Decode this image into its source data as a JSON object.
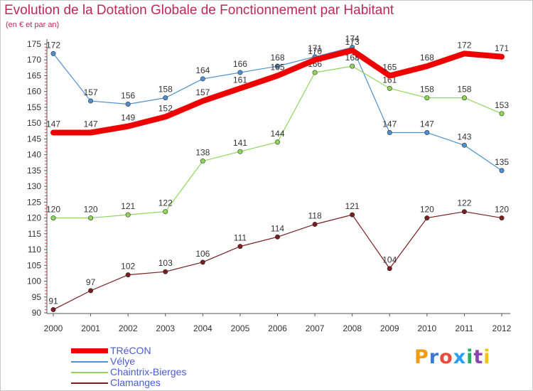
{
  "title": "Evolution de la Dotation Globale de Fonctionnement par Habitant",
  "subtitle": "(en € et par an)",
  "logo": {
    "text": "Proxiti",
    "letter_colors": [
      "#f39c12",
      "#3a7bd5",
      "#e74c3c",
      "#2a9df4",
      "#27ae60",
      "#8e44ad",
      "#f1c40f"
    ]
  },
  "chart_data": {
    "type": "line",
    "x": [
      "2000",
      "2001",
      "2002",
      "2003",
      "2004",
      "2005",
      "2006",
      "2007",
      "2008",
      "2009",
      "2010",
      "2011",
      "2012"
    ],
    "yticks": [
      90,
      95,
      100,
      105,
      110,
      115,
      120,
      125,
      130,
      135,
      140,
      145,
      150,
      155,
      160,
      165,
      170,
      175
    ],
    "ylim": [
      90,
      175
    ],
    "grid": false,
    "legend_position": "bottom-left",
    "series": [
      {
        "name": "Vélye",
        "color": "#4f8fcf",
        "line_width": 1.2,
        "marker": true,
        "values": [
          172,
          157,
          156,
          158,
          164,
          166,
          168,
          171,
          174,
          147,
          147,
          143,
          135
        ]
      },
      {
        "name": "Chaintrix-Bierges",
        "color": "#8fd65a",
        "line_width": 1.2,
        "marker": true,
        "values": [
          120,
          120,
          121,
          122,
          138,
          141,
          144,
          166,
          168,
          161,
          158,
          158,
          153
        ]
      },
      {
        "name": "Clamanges",
        "color": "#7a1f1f",
        "line_width": 1.2,
        "marker": true,
        "values": [
          91,
          97,
          102,
          103,
          106,
          111,
          114,
          118,
          121,
          104,
          120,
          122,
          120
        ]
      },
      {
        "name": "TRéCON",
        "color": "#ee0000",
        "line_width": 8,
        "marker": false,
        "values": [
          147,
          147,
          149,
          152,
          157,
          161,
          165,
          170,
          173,
          165,
          168,
          172,
          171
        ]
      }
    ]
  }
}
